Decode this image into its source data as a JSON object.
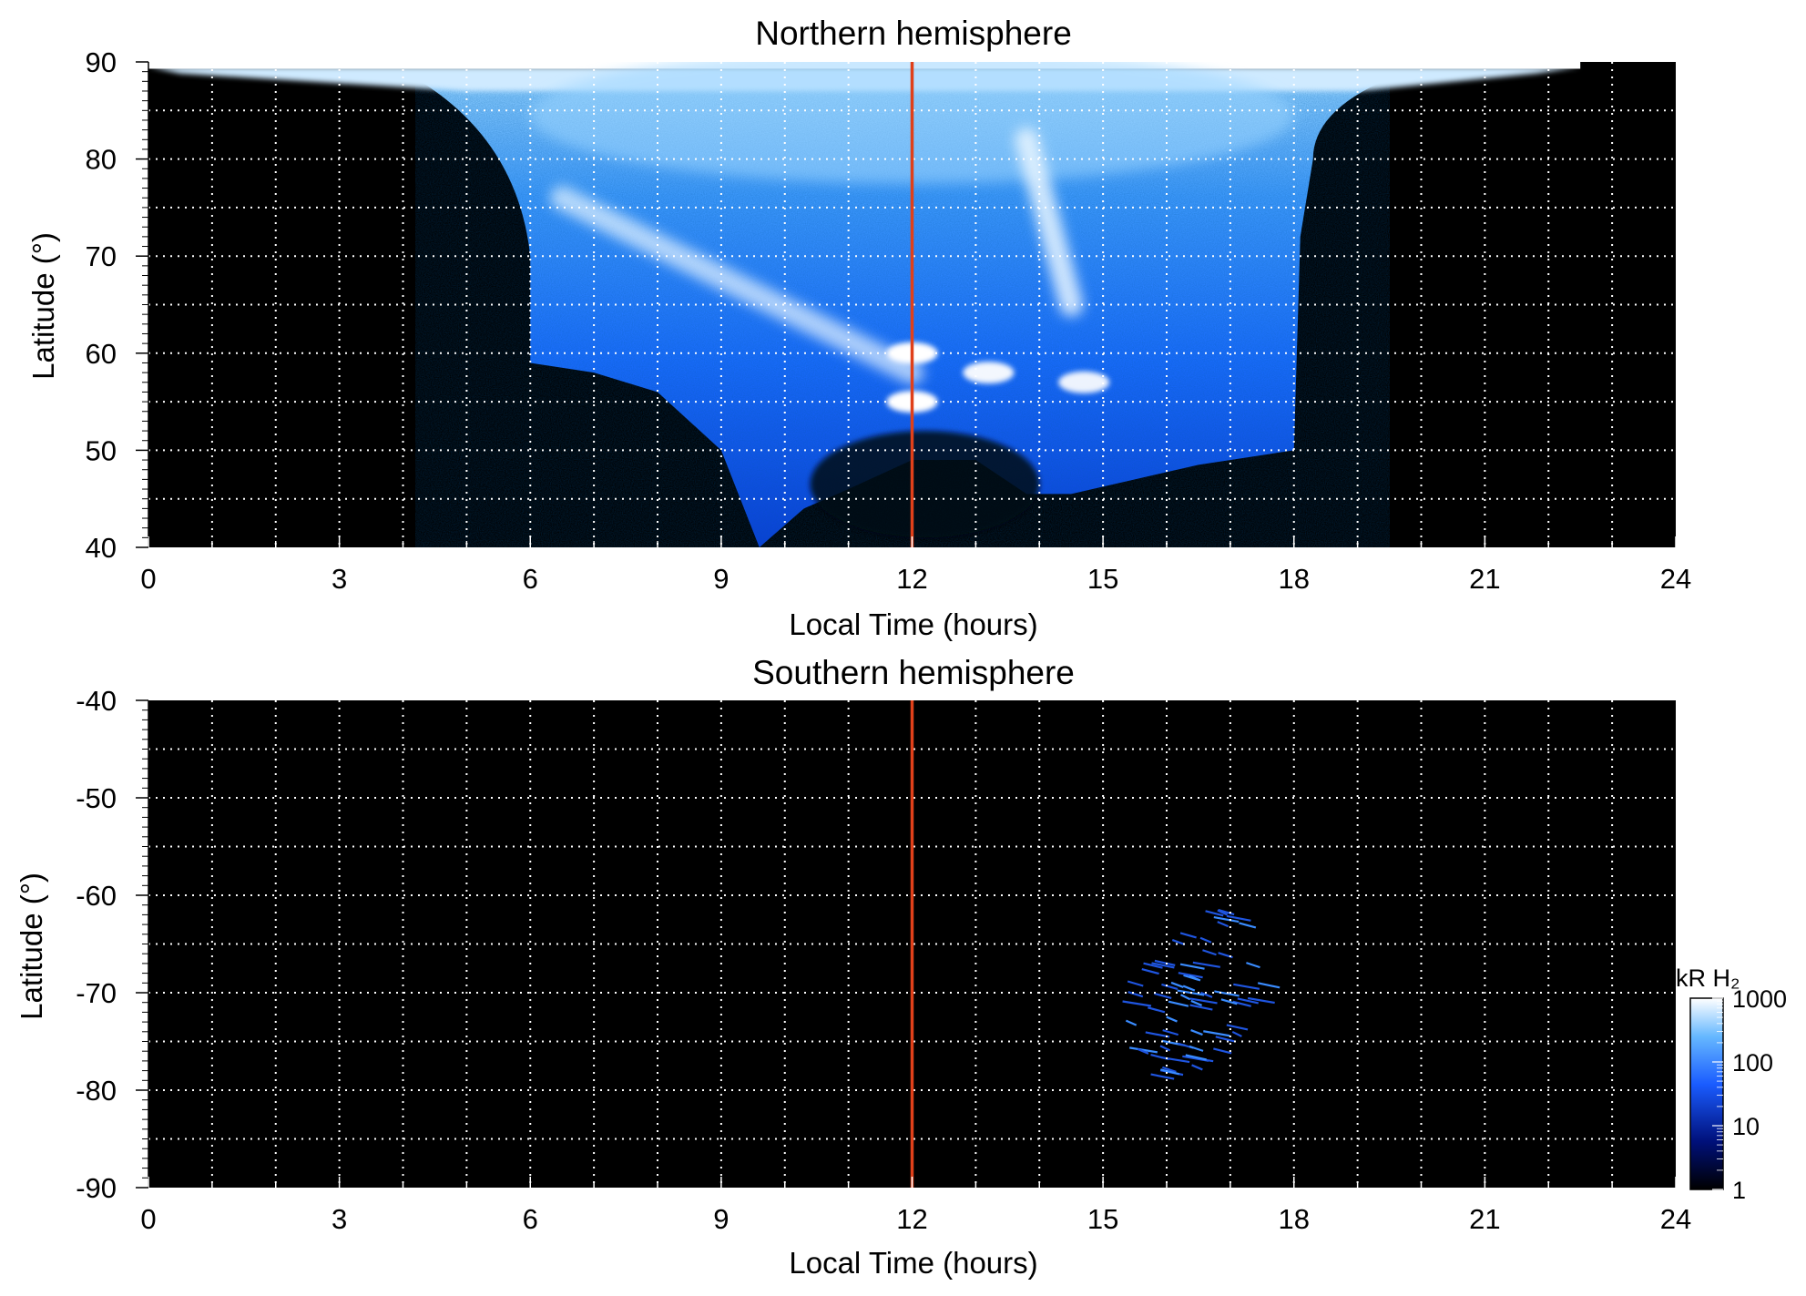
{
  "chart_data": [
    {
      "type": "heatmap",
      "title": "Northern hemisphere",
      "xlabel": "Local Time (hours)",
      "ylabel": "Latitude (°)",
      "xlim": [
        0,
        24
      ],
      "ylim": [
        40,
        90
      ],
      "xticks": [
        0,
        3,
        6,
        9,
        12,
        15,
        18,
        21,
        24
      ],
      "yticks": [
        40,
        50,
        60,
        70,
        80,
        90
      ],
      "grid": true,
      "background": "#000000",
      "marker_line": {
        "x": 12,
        "color": "#e0401a"
      },
      "coverage": {
        "boundary_lower": [
          [
            6,
            59
          ],
          [
            7,
            58
          ],
          [
            8,
            56
          ],
          [
            9,
            50
          ],
          [
            9.6,
            40
          ],
          [
            10.3,
            44
          ],
          [
            11,
            46
          ],
          [
            12,
            49
          ],
          [
            13,
            49
          ],
          [
            13.8,
            45.5
          ],
          [
            14.5,
            45.5
          ],
          [
            15.5,
            47
          ],
          [
            16.5,
            48.5
          ],
          [
            17.5,
            49.5
          ],
          [
            18,
            50
          ]
        ],
        "boundary_upper_lt_range": [
          4.2,
          19.5
        ],
        "polar_cap_lt_range": [
          0,
          22.5
        ]
      },
      "features": [
        {
          "name": "dawn-arc",
          "lt": [
            6.5,
            12
          ],
          "lat": [
            76,
            58
          ],
          "intensity_kR": 300
        },
        {
          "name": "noon-arc",
          "lt": [
            13.8,
            14.5
          ],
          "lat": [
            82,
            65
          ],
          "intensity_kR": 1000
        },
        {
          "name": "bright-spot",
          "lt": 12,
          "lat": 60,
          "intensity_kR": 1000
        },
        {
          "name": "bright-spot",
          "lt": 12,
          "lat": 55,
          "intensity_kR": 1000
        },
        {
          "name": "bright-spot",
          "lt": 13.2,
          "lat": 58,
          "intensity_kR": 700
        },
        {
          "name": "bright-spot",
          "lt": 14.7,
          "lat": 57,
          "intensity_kR": 600
        }
      ]
    },
    {
      "type": "heatmap",
      "title": "Southern hemisphere",
      "xlabel": "Local Time (hours)",
      "ylabel": "Latitude (°)",
      "xlim": [
        0,
        24
      ],
      "ylim": [
        -90,
        -40
      ],
      "xticks": [
        0,
        3,
        6,
        9,
        12,
        15,
        18,
        21,
        24
      ],
      "yticks": [
        -40,
        -50,
        -60,
        -70,
        -80,
        -90
      ],
      "grid": true,
      "background": "#000000",
      "marker_line": {
        "x": 12,
        "color": "#e0401a"
      },
      "features": [
        {
          "name": "sparse-streaks",
          "lt": [
            15.5,
            17.5
          ],
          "lat": [
            -79,
            -61
          ],
          "intensity_kR": 60
        }
      ]
    }
  ],
  "colorbar": {
    "label": "kR H₂",
    "scale": "log",
    "range": [
      1,
      1000
    ],
    "ticks": [
      "1000",
      "100",
      "10",
      "1"
    ],
    "colors": [
      "#000000",
      "#00107a",
      "#1a5cff",
      "#66b8ff",
      "#ffffff"
    ]
  }
}
